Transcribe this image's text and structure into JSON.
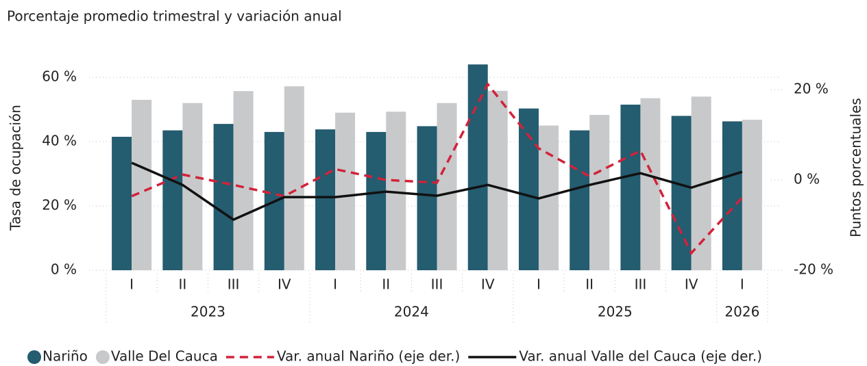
{
  "chart_data": {
    "type": "bar_line",
    "title": "Porcentaje promedio trimestral y variación anual",
    "y_label": "Tasa de ocupación",
    "y2_label": "Puntos porcentuales",
    "categories": [
      "I",
      "II",
      "III",
      "IV",
      "I",
      "II",
      "III",
      "IV",
      "I",
      "II",
      "III",
      "IV",
      "I"
    ],
    "years": [
      "2023",
      "2023",
      "2023",
      "2023",
      "2024",
      "2024",
      "2024",
      "2024",
      "2025",
      "2025",
      "2025",
      "2025",
      "2026"
    ],
    "series": [
      {
        "name": "Nariño",
        "kind": "bar",
        "color": "#245c70",
        "values": [
          41.5,
          43.5,
          45.5,
          43,
          43.8,
          43,
          44.8,
          64,
          50.3,
          43.5,
          51.5,
          48,
          46.3
        ]
      },
      {
        "name": "Valle Del Cauca",
        "kind": "bar",
        "color": "#c8c9cb",
        "values": [
          53,
          52,
          55.7,
          57.2,
          49,
          49.3,
          52,
          55.8,
          45,
          48.3,
          53.5,
          54,
          46.8
        ]
      },
      {
        "name": "Var. anual Nariño (eje der.)",
        "kind": "line",
        "dashed": true,
        "axis": "y2",
        "color": "#d2223a",
        "values": [
          -3.6,
          1.2,
          -1.1,
          -3.6,
          2.4,
          0,
          -0.6,
          21.2,
          7.0,
          0.8,
          6.5,
          -16.2,
          -3.9
        ]
      },
      {
        "name": "Var. anual Valle del Cauca (eje der.)",
        "kind": "line",
        "dashed": false,
        "axis": "y2",
        "color": "#111111",
        "values": [
          3.8,
          -1.1,
          -8.8,
          -3.8,
          -3.8,
          -2.6,
          -3.5,
          -1.1,
          -4.1,
          -1.1,
          1.5,
          -1.7,
          1.8
        ]
      }
    ],
    "ylim": [
      0,
      65
    ],
    "yticks": [
      {
        "value": 0,
        "label": "0 %"
      },
      {
        "value": 20,
        "label": "20 %"
      },
      {
        "value": 40,
        "label": "40 %"
      },
      {
        "value": 60,
        "label": "60 %"
      }
    ],
    "y2lim": [
      -20,
      26.3
    ],
    "y2ticks": [
      {
        "value": -20,
        "label": "-20 %"
      },
      {
        "value": 0,
        "label": "0 %"
      },
      {
        "value": 20,
        "label": "20 %"
      }
    ],
    "grid": true
  }
}
